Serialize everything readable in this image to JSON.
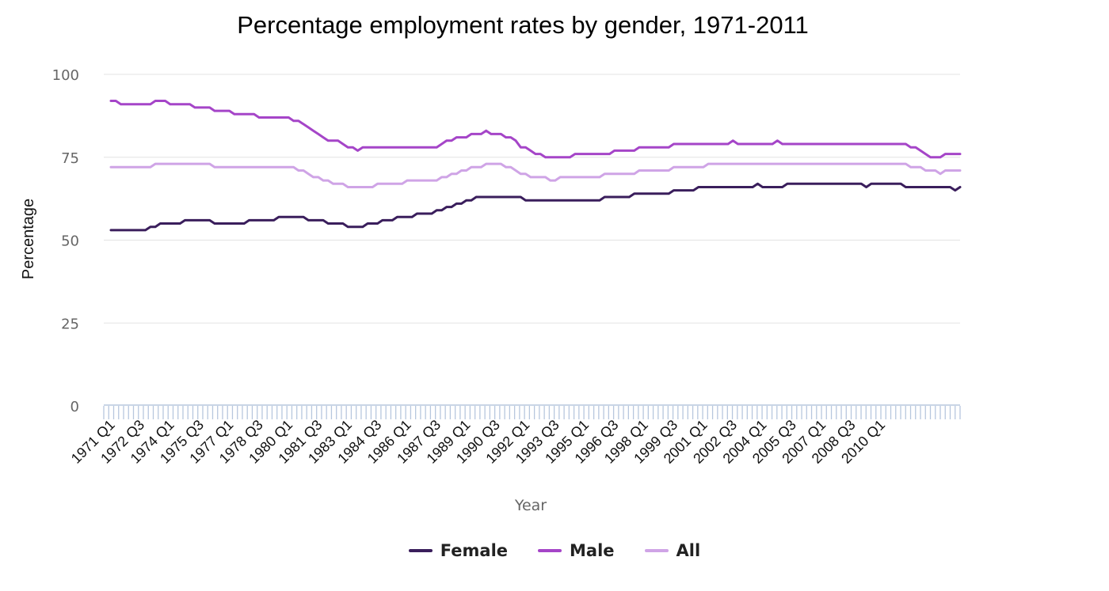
{
  "colors": {
    "female": "#3a1e5c",
    "male": "#a545c8",
    "all": "#cfa4e6",
    "grid": "#e3e3e3",
    "axis_ticks": "#b7c7de"
  },
  "chart_data": {
    "type": "line",
    "title": "Percentage employment rates by gender, 1971-2011",
    "xlabel": "Year",
    "ylabel": "Percentage",
    "ylim": [
      0,
      100
    ],
    "yticks": [
      "0",
      "25",
      "50",
      "75",
      "100"
    ],
    "grid": true,
    "legend_position": "bottom-center",
    "x_tick_labels": [
      "1971 Q1",
      "1972 Q3",
      "1974 Q1",
      "1975 Q3",
      "1977 Q1",
      "1978 Q3",
      "1980 Q1",
      "1981 Q3",
      "1983 Q1",
      "1984 Q3",
      "1986 Q1",
      "1987 Q3",
      "1989 Q1",
      "1990 Q3",
      "1992 Q1",
      "1993 Q3",
      "1995 Q1",
      "1996 Q3",
      "1998 Q1",
      "1999 Q3",
      "2001 Q1",
      "2002 Q3",
      "2004 Q1",
      "2005 Q3",
      "2007 Q1",
      "2008 Q3",
      "2010 Q1"
    ],
    "series": [
      {
        "name": "Female",
        "values": [
          53,
          53,
          53,
          53,
          53,
          53,
          53,
          53,
          54,
          54,
          55,
          55,
          55,
          55,
          55,
          56,
          56,
          56,
          56,
          56,
          56,
          55,
          55,
          55,
          55,
          55,
          55,
          55,
          56,
          56,
          56,
          56,
          56,
          56,
          57,
          57,
          57,
          57,
          57,
          57,
          56,
          56,
          56,
          56,
          55,
          55,
          55,
          55,
          54,
          54,
          54,
          54,
          55,
          55,
          55,
          56,
          56,
          56,
          57,
          57,
          57,
          57,
          58,
          58,
          58,
          58,
          59,
          59,
          60,
          60,
          61,
          61,
          62,
          62,
          63,
          63,
          63,
          63,
          63,
          63,
          63,
          63,
          63,
          63,
          62,
          62,
          62,
          62,
          62,
          62,
          62,
          62,
          62,
          62,
          62,
          62,
          62,
          62,
          62,
          62,
          63,
          63,
          63,
          63,
          63,
          63,
          64,
          64,
          64,
          64,
          64,
          64,
          64,
          64,
          65,
          65,
          65,
          65,
          65,
          66,
          66,
          66,
          66,
          66,
          66,
          66,
          66,
          66,
          66,
          66,
          66,
          67,
          66,
          66,
          66,
          66,
          66,
          67,
          67,
          67,
          67,
          67,
          67,
          67,
          67,
          67,
          67,
          67,
          67,
          67,
          67,
          67,
          67,
          66,
          67,
          67,
          67,
          67,
          67,
          67,
          67,
          66,
          66,
          66,
          66,
          66,
          66,
          66,
          66,
          66,
          66,
          65,
          66
        ]
      },
      {
        "name": "Male",
        "values": [
          92,
          92,
          91,
          91,
          91,
          91,
          91,
          91,
          91,
          92,
          92,
          92,
          91,
          91,
          91,
          91,
          91,
          90,
          90,
          90,
          90,
          89,
          89,
          89,
          89,
          88,
          88,
          88,
          88,
          88,
          87,
          87,
          87,
          87,
          87,
          87,
          87,
          86,
          86,
          85,
          84,
          83,
          82,
          81,
          80,
          80,
          80,
          79,
          78,
          78,
          77,
          78,
          78,
          78,
          78,
          78,
          78,
          78,
          78,
          78,
          78,
          78,
          78,
          78,
          78,
          78,
          78,
          79,
          80,
          80,
          81,
          81,
          81,
          82,
          82,
          82,
          83,
          82,
          82,
          82,
          81,
          81,
          80,
          78,
          78,
          77,
          76,
          76,
          75,
          75,
          75,
          75,
          75,
          75,
          76,
          76,
          76,
          76,
          76,
          76,
          76,
          76,
          77,
          77,
          77,
          77,
          77,
          78,
          78,
          78,
          78,
          78,
          78,
          78,
          79,
          79,
          79,
          79,
          79,
          79,
          79,
          79,
          79,
          79,
          79,
          79,
          80,
          79,
          79,
          79,
          79,
          79,
          79,
          79,
          79,
          80,
          79,
          79,
          79,
          79,
          79,
          79,
          79,
          79,
          79,
          79,
          79,
          79,
          79,
          79,
          79,
          79,
          79,
          79,
          79,
          79,
          79,
          79,
          79,
          79,
          79,
          79,
          78,
          78,
          77,
          76,
          75,
          75,
          75,
          76,
          76,
          76,
          76
        ]
      },
      {
        "name": "All",
        "values": [
          72,
          72,
          72,
          72,
          72,
          72,
          72,
          72,
          72,
          73,
          73,
          73,
          73,
          73,
          73,
          73,
          73,
          73,
          73,
          73,
          73,
          72,
          72,
          72,
          72,
          72,
          72,
          72,
          72,
          72,
          72,
          72,
          72,
          72,
          72,
          72,
          72,
          72,
          71,
          71,
          70,
          69,
          69,
          68,
          68,
          67,
          67,
          67,
          66,
          66,
          66,
          66,
          66,
          66,
          67,
          67,
          67,
          67,
          67,
          67,
          68,
          68,
          68,
          68,
          68,
          68,
          68,
          69,
          69,
          70,
          70,
          71,
          71,
          72,
          72,
          72,
          73,
          73,
          73,
          73,
          72,
          72,
          71,
          70,
          70,
          69,
          69,
          69,
          69,
          68,
          68,
          69,
          69,
          69,
          69,
          69,
          69,
          69,
          69,
          69,
          70,
          70,
          70,
          70,
          70,
          70,
          70,
          71,
          71,
          71,
          71,
          71,
          71,
          71,
          72,
          72,
          72,
          72,
          72,
          72,
          72,
          73,
          73,
          73,
          73,
          73,
          73,
          73,
          73,
          73,
          73,
          73,
          73,
          73,
          73,
          73,
          73,
          73,
          73,
          73,
          73,
          73,
          73,
          73,
          73,
          73,
          73,
          73,
          73,
          73,
          73,
          73,
          73,
          73,
          73,
          73,
          73,
          73,
          73,
          73,
          73,
          73,
          72,
          72,
          72,
          71,
          71,
          71,
          70,
          71,
          71,
          71,
          71
        ]
      }
    ]
  }
}
